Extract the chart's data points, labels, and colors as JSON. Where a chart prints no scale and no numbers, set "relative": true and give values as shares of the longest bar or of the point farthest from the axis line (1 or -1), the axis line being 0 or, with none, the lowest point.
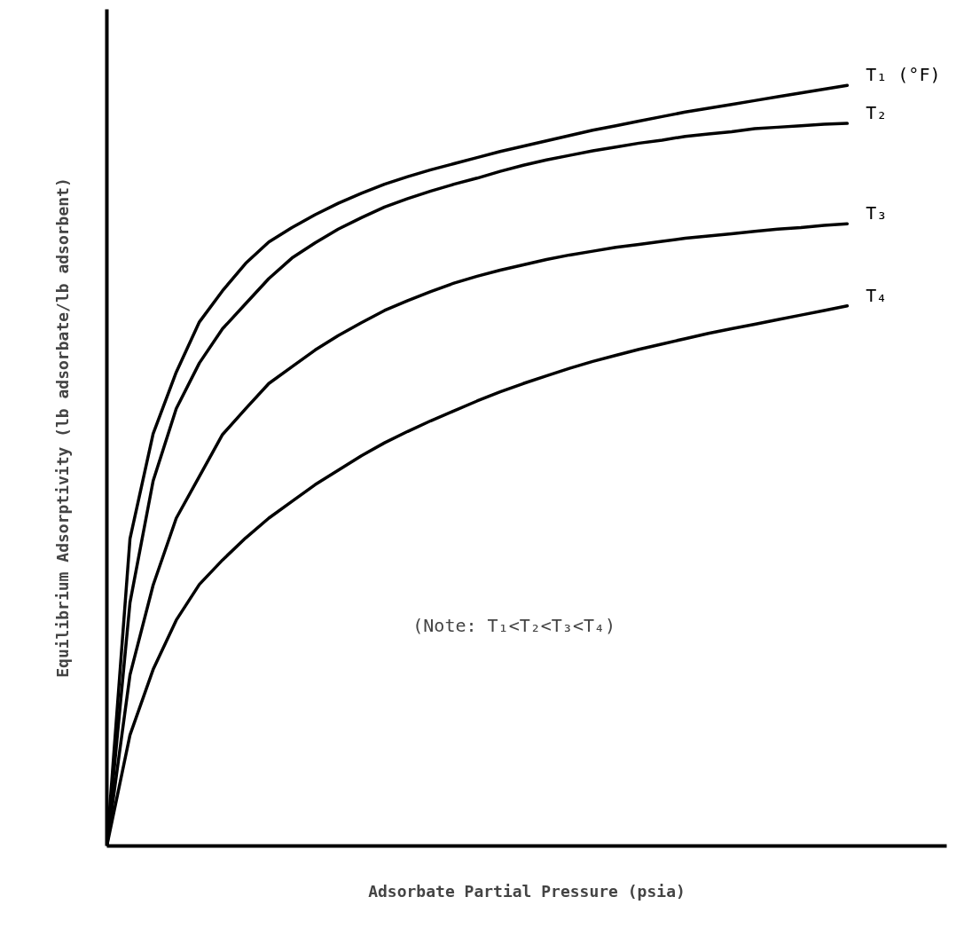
{
  "chart_data": {
    "type": "line",
    "relative": true,
    "xlabel": "Adsorbate Partial Pressure (psia)",
    "ylabel": "Equilibrium Adsorptivity (lb adsorbate/lb adsorbent)",
    "categories": [
      null,
      null,
      null,
      null,
      null,
      null,
      null,
      null,
      null,
      null,
      null,
      null,
      null,
      null,
      null,
      null,
      null,
      null,
      null,
      null,
      null,
      null,
      null,
      null,
      null,
      null,
      null,
      null,
      null,
      null,
      null,
      null,
      null
    ],
    "series": [
      {
        "name": "T₁ (°F)",
        "color": "#000000",
        "values": [
          0,
          0.404,
          0.542,
          0.623,
          0.689,
          0.73,
          0.766,
          0.794,
          0.813,
          0.83,
          0.845,
          0.858,
          0.87,
          0.88,
          0.889,
          0.897,
          0.905,
          0.913,
          0.92,
          0.927,
          0.934,
          0.941,
          0.947,
          0.953,
          0.959,
          0.965,
          0.97,
          0.975,
          0.98,
          0.985,
          0.99,
          0.995,
          1
        ]
      },
      {
        "name": "T₂",
        "color": "#000000",
        "values": [
          0,
          0.32,
          0.48,
          0.575,
          0.635,
          0.68,
          0.713,
          0.746,
          0.773,
          0.793,
          0.811,
          0.826,
          0.84,
          0.851,
          0.861,
          0.87,
          0.878,
          0.887,
          0.895,
          0.902,
          0.908,
          0.914,
          0.919,
          0.924,
          0.928,
          0.933,
          0.936,
          0.939,
          0.943,
          0.945,
          0.947,
          0.949,
          0.95
        ]
      },
      {
        "name": "T₃",
        "color": "#000000",
        "values": [
          0,
          0.225,
          0.343,
          0.431,
          0.486,
          0.541,
          0.575,
          0.608,
          0.63,
          0.652,
          0.671,
          0.688,
          0.704,
          0.717,
          0.729,
          0.74,
          0.749,
          0.757,
          0.764,
          0.771,
          0.777,
          0.782,
          0.787,
          0.791,
          0.795,
          0.799,
          0.802,
          0.805,
          0.808,
          0.811,
          0.813,
          0.816,
          0.818
        ]
      },
      {
        "name": "T₄",
        "color": "#000000",
        "values": [
          0,
          0.146,
          0.232,
          0.297,
          0.344,
          0.376,
          0.405,
          0.431,
          0.453,
          0.475,
          0.494,
          0.513,
          0.53,
          0.545,
          0.559,
          0.572,
          0.585,
          0.597,
          0.608,
          0.618,
          0.628,
          0.637,
          0.645,
          0.653,
          0.66,
          0.667,
          0.674,
          0.68,
          0.686,
          0.692,
          0.698,
          0.704,
          0.71
        ]
      }
    ],
    "annotations": [
      "(Note: T₁<T₂<T₃<T₄)"
    ]
  }
}
